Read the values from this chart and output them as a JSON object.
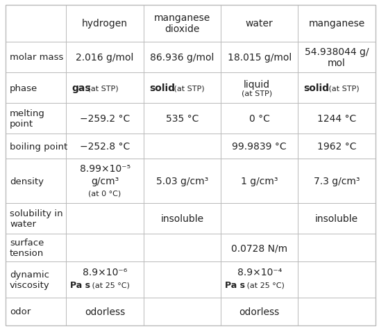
{
  "bg_color": "#ffffff",
  "border_color": "#bbbbbb",
  "text_color": "#222222",
  "col_labels": [
    "",
    "hydrogen",
    "manganese\ndioxide",
    "water",
    "manganese"
  ],
  "row_labels": [
    "molar mass",
    "phase",
    "melting\npoint",
    "boiling point",
    "density",
    "solubility in\nwater",
    "surface\ntension",
    "dynamic\nviscosity",
    "odor"
  ],
  "figsize": [
    5.46,
    4.77
  ],
  "dpi": 100
}
